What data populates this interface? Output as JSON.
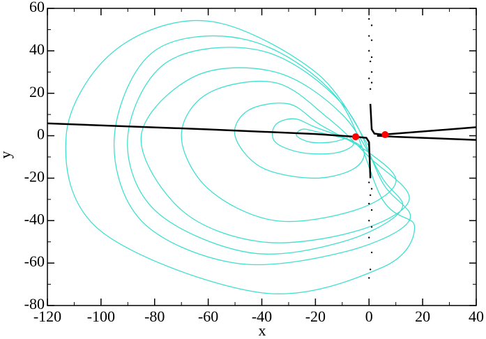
{
  "chart_data": {
    "type": "line",
    "x_label": "x",
    "y_label": "y",
    "xlim": [
      -120,
      40
    ],
    "ylim": [
      -80,
      60
    ],
    "xticks": [
      -120,
      -100,
      -80,
      -60,
      -40,
      -20,
      0,
      20,
      40
    ],
    "yticks": [
      -80,
      -60,
      -40,
      -20,
      0,
      20,
      40,
      60
    ],
    "xminorticks": [
      -110,
      -90,
      -70,
      -50,
      -30,
      -10,
      10,
      30
    ],
    "yminorticks": [
      -70,
      -50,
      -30,
      -10,
      10,
      30,
      50
    ],
    "series": [
      {
        "color": "#40e0d0",
        "style": "smooth",
        "x": [
          0,
          -20,
          -60,
          -95,
          -113,
          -100,
          -40,
          5,
          17,
          5,
          -12,
          -45,
          -80,
          -95,
          -85,
          -50,
          -10,
          15,
          5,
          -10,
          -40,
          -75,
          -90,
          -80,
          -45,
          -10,
          12,
          5,
          -10,
          -35,
          -65,
          -85,
          -70,
          -40,
          -5,
          15,
          0,
          -15,
          -35,
          -60,
          -70,
          -60,
          -35,
          -5,
          10,
          0,
          -18,
          -30,
          -45,
          -50,
          -40,
          -20,
          -5,
          -3,
          -20,
          -28,
          -35,
          -35,
          -25,
          -12,
          -6,
          -20,
          -25,
          -27,
          -22,
          -14,
          -8
        ],
        "values": [
          -5,
          30,
          54,
          40,
          0,
          -45,
          -74,
          -62,
          -43,
          -30,
          18,
          45,
          40,
          0,
          -40,
          -60,
          -55,
          -40,
          -22,
          15,
          40,
          35,
          0,
          -35,
          -55,
          -50,
          -35,
          -20,
          10,
          30,
          28,
          0,
          -35,
          -50,
          -45,
          -30,
          -10,
          8,
          25,
          20,
          0,
          -25,
          -40,
          -35,
          -22,
          -8,
          5,
          15,
          12,
          0,
          -15,
          -20,
          -15,
          -5,
          4,
          8,
          5,
          -3,
          -8,
          -8,
          -3,
          2,
          3,
          0,
          -3,
          -3,
          -1
        ]
      },
      {
        "color": "#000000",
        "style": "line",
        "x": [
          -120,
          -60,
          -20,
          -5,
          -1,
          0,
          0.5
        ],
        "values": [
          5.8,
          3,
          0.8,
          -0.5,
          -1,
          -3,
          -20
        ]
      },
      {
        "color": "#000000",
        "style": "line",
        "x": [
          40,
          15,
          5,
          2,
          1,
          0.5
        ],
        "values": [
          4,
          1.5,
          0.5,
          1,
          3,
          15
        ]
      },
      {
        "color": "#000000",
        "style": "line",
        "x": [
          40,
          10,
          3
        ],
        "values": [
          -2,
          -0.5,
          0
        ]
      },
      {
        "color": "#000000",
        "style": "dots",
        "x": [
          0,
          1,
          0,
          1,
          0,
          1,
          0.5,
          1,
          0,
          1,
          0.5,
          0,
          1,
          0.5,
          0,
          1,
          0,
          1,
          0,
          1,
          0.5,
          0
        ],
        "values": [
          55,
          52,
          47,
          45,
          40,
          37,
          35,
          30,
          27,
          25,
          22,
          -22,
          -25,
          -28,
          -32,
          -35,
          -40,
          -43,
          -48,
          -55,
          -63,
          -67
        ]
      },
      {
        "color": "#ff0000",
        "style": "markers",
        "x": [
          -5,
          6
        ],
        "values": [
          -0.5,
          0.5
        ]
      }
    ]
  }
}
